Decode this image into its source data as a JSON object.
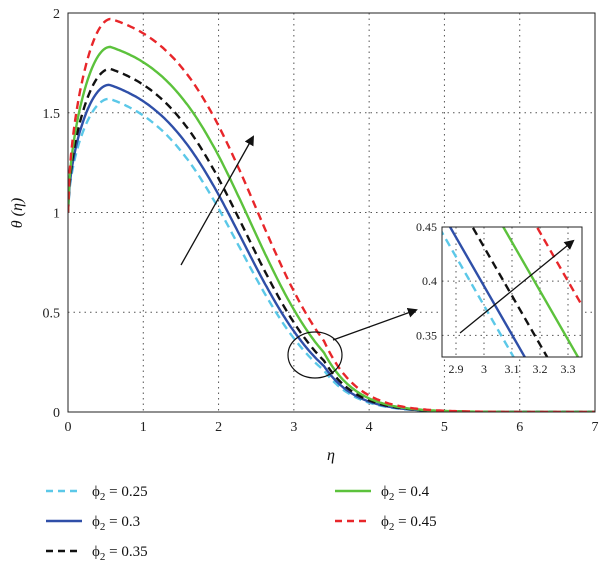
{
  "chart_data": {
    "type": "line",
    "xlabel": "η",
    "ylabel": "θ (η)",
    "xlim": [
      0,
      7
    ],
    "ylim": [
      0,
      2
    ],
    "xticks": [
      "0",
      "1",
      "2",
      "3",
      "4",
      "5",
      "6",
      "7"
    ],
    "yticks": [
      "0",
      "0.5",
      "1",
      "1.5",
      "2"
    ],
    "grid": true,
    "series": [
      {
        "name": "ϕ2 = 0.25",
        "legend_base": "ϕ",
        "legend_sub": "2",
        "legend_value": " = 0.25",
        "color": "#5bc8e8",
        "dash": "dashed",
        "peak": 1.57,
        "x_peak": 0.55
      },
      {
        "name": "ϕ2 = 0.3",
        "legend_base": "ϕ",
        "legend_sub": "2",
        "legend_value": " = 0.3",
        "color": "#2f4fa8",
        "dash": "solid",
        "peak": 1.64,
        "x_peak": 0.55
      },
      {
        "name": "ϕ2 = 0.35",
        "legend_base": "ϕ",
        "legend_sub": "2",
        "legend_value": " = 0.35",
        "color": "#111111",
        "dash": "dashed",
        "peak": 1.72,
        "x_peak": 0.56
      },
      {
        "name": "ϕ2 = 0.4",
        "legend_base": "ϕ",
        "legend_sub": "2",
        "legend_value": " = 0.4",
        "color": "#5cc23c",
        "dash": "solid",
        "peak": 1.83,
        "x_peak": 0.56
      },
      {
        "name": "ϕ2 = 0.45",
        "legend_base": "ϕ",
        "legend_sub": "2",
        "legend_value": " = 0.45",
        "color": "#e8262a",
        "dash": "dashed",
        "peak": 1.97,
        "x_peak": 0.57
      }
    ],
    "inset": {
      "xlim": [
        2.85,
        3.35
      ],
      "ylim": [
        0.33,
        0.45
      ],
      "xticks": [
        "2.9",
        "3",
        "3.1",
        "3.2",
        "3.3"
      ],
      "yticks": [
        "0.35",
        "0.4",
        "0.45"
      ],
      "crossings_at_0_4": [
        2.95,
        2.99,
        3.07,
        3.18,
        3.3
      ]
    },
    "legend_placement": "below"
  }
}
